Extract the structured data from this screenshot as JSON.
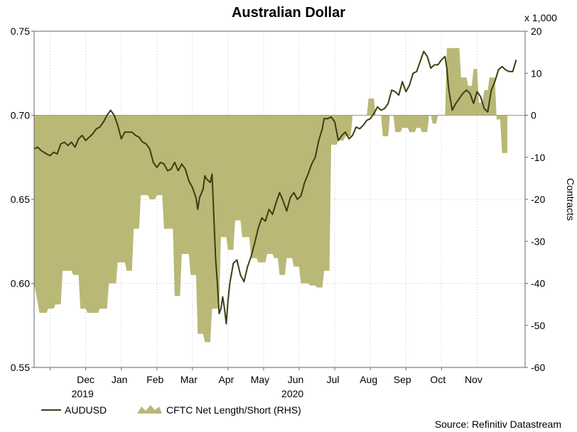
{
  "chart_data": {
    "type": "line+area",
    "title": "Australian Dollar",
    "left_axis": {
      "ylim": [
        0.55,
        0.75
      ],
      "ticks": [
        "0.55",
        "0.60",
        "0.65",
        "0.70",
        "0.75"
      ]
    },
    "right_axis": {
      "ylim": [
        -60,
        20
      ],
      "ticks": [
        "-60",
        "-50",
        "-40",
        "-30",
        "-20",
        "-10",
        "0",
        "10",
        "20"
      ],
      "label": "Contracts",
      "multiplier": "x 1,000"
    },
    "x_month_labels": [
      "Dec",
      "Jan",
      "Feb",
      "Mar",
      "Apr",
      "May",
      "Jun",
      "Jul",
      "Aug",
      "Sep",
      "Oct",
      "Nov"
    ],
    "x_year_labels": [
      {
        "label": "2019",
        "month_index": 0
      },
      {
        "label": "2020",
        "month_index": 6
      }
    ],
    "x_domain_months": [
      0,
      12.25
    ],
    "series": [
      {
        "name": "AUDUSD",
        "axis": "left",
        "color": "#3d3d14",
        "points": [
          [
            0.0,
            0.68
          ],
          [
            0.1,
            0.681
          ],
          [
            0.2,
            0.679
          ],
          [
            0.35,
            0.677
          ],
          [
            0.45,
            0.676
          ],
          [
            0.55,
            0.678
          ],
          [
            0.65,
            0.677
          ],
          [
            0.75,
            0.683
          ],
          [
            0.85,
            0.684
          ],
          [
            0.95,
            0.682
          ],
          [
            1.05,
            0.684
          ],
          [
            1.15,
            0.681
          ],
          [
            1.25,
            0.686
          ],
          [
            1.35,
            0.688
          ],
          [
            1.45,
            0.685
          ],
          [
            1.55,
            0.687
          ],
          [
            1.65,
            0.689
          ],
          [
            1.75,
            0.692
          ],
          [
            1.85,
            0.693
          ],
          [
            1.95,
            0.696
          ],
          [
            2.05,
            0.7
          ],
          [
            2.15,
            0.703
          ],
          [
            2.25,
            0.7
          ],
          [
            2.35,
            0.694
          ],
          [
            2.45,
            0.686
          ],
          [
            2.55,
            0.69
          ],
          [
            2.65,
            0.69
          ],
          [
            2.75,
            0.69
          ],
          [
            2.85,
            0.688
          ],
          [
            2.95,
            0.687
          ],
          [
            3.05,
            0.684
          ],
          [
            3.15,
            0.683
          ],
          [
            3.25,
            0.68
          ],
          [
            3.35,
            0.672
          ],
          [
            3.45,
            0.669
          ],
          [
            3.55,
            0.672
          ],
          [
            3.65,
            0.671
          ],
          [
            3.75,
            0.667
          ],
          [
            3.85,
            0.668
          ],
          [
            3.95,
            0.672
          ],
          [
            4.05,
            0.667
          ],
          [
            4.15,
            0.671
          ],
          [
            4.25,
            0.668
          ],
          [
            4.35,
            0.661
          ],
          [
            4.45,
            0.657
          ],
          [
            4.55,
            0.651
          ],
          [
            4.6,
            0.644
          ],
          [
            4.65,
            0.651
          ],
          [
            4.75,
            0.656
          ],
          [
            4.8,
            0.664
          ],
          [
            4.85,
            0.662
          ],
          [
            4.95,
            0.66
          ],
          [
            5.0,
            0.665
          ],
          [
            5.05,
            0.64
          ],
          [
            5.1,
            0.615
          ],
          [
            5.15,
            0.6
          ],
          [
            5.2,
            0.582
          ],
          [
            5.25,
            0.585
          ],
          [
            5.3,
            0.592
          ],
          [
            5.35,
            0.585
          ],
          [
            5.4,
            0.576
          ],
          [
            5.45,
            0.59
          ],
          [
            5.5,
            0.6
          ],
          [
            5.6,
            0.612
          ],
          [
            5.7,
            0.614
          ],
          [
            5.8,
            0.605
          ],
          [
            5.9,
            0.601
          ],
          [
            6.0,
            0.61
          ],
          [
            6.1,
            0.616
          ],
          [
            6.2,
            0.624
          ],
          [
            6.3,
            0.633
          ],
          [
            6.4,
            0.639
          ],
          [
            6.5,
            0.637
          ],
          [
            6.6,
            0.644
          ],
          [
            6.7,
            0.641
          ],
          [
            6.8,
            0.648
          ],
          [
            6.9,
            0.654
          ],
          [
            7.0,
            0.649
          ],
          [
            7.1,
            0.643
          ],
          [
            7.2,
            0.651
          ],
          [
            7.3,
            0.654
          ],
          [
            7.4,
            0.65
          ],
          [
            7.5,
            0.652
          ],
          [
            7.6,
            0.66
          ],
          [
            7.7,
            0.665
          ],
          [
            7.8,
            0.671
          ],
          [
            7.9,
            0.675
          ],
          [
            8.0,
            0.685
          ],
          [
            8.1,
            0.692
          ],
          [
            8.15,
            0.698
          ],
          [
            8.25,
            0.698
          ],
          [
            8.35,
            0.699
          ],
          [
            8.45,
            0.696
          ],
          [
            8.55,
            0.685
          ],
          [
            8.65,
            0.688
          ],
          [
            8.75,
            0.69
          ],
          [
            8.85,
            0.686
          ],
          [
            8.95,
            0.688
          ],
          [
            9.05,
            0.693
          ],
          [
            9.15,
            0.692
          ],
          [
            9.25,
            0.694
          ],
          [
            9.35,
            0.697
          ],
          [
            9.45,
            0.698
          ],
          [
            9.55,
            0.701
          ],
          [
            9.65,
            0.705
          ],
          [
            9.75,
            0.703
          ],
          [
            9.85,
            0.704
          ],
          [
            9.95,
            0.707
          ],
          [
            10.05,
            0.715
          ],
          [
            10.15,
            0.714
          ],
          [
            10.25,
            0.712
          ],
          [
            10.35,
            0.72
          ],
          [
            10.45,
            0.714
          ],
          [
            10.55,
            0.718
          ],
          [
            10.65,
            0.725
          ],
          [
            10.75,
            0.726
          ],
          [
            10.85,
            0.732
          ],
          [
            10.95,
            0.738
          ],
          [
            11.05,
            0.735
          ],
          [
            11.15,
            0.728
          ],
          [
            11.25,
            0.73
          ],
          [
            11.35,
            0.73
          ],
          [
            11.45,
            0.733
          ],
          [
            11.55,
            0.735
          ],
          [
            11.6,
            0.728
          ],
          [
            11.65,
            0.716
          ],
          [
            11.75,
            0.703
          ],
          [
            11.85,
            0.707
          ],
          [
            11.95,
            0.71
          ],
          [
            12.05,
            0.713
          ],
          [
            12.15,
            0.715
          ],
          [
            12.25,
            0.713
          ],
          [
            12.35,
            0.707
          ],
          [
            12.45,
            0.714
          ],
          [
            12.55,
            0.711
          ],
          [
            12.65,
            0.704
          ],
          [
            12.75,
            0.702
          ],
          [
            12.85,
            0.715
          ],
          [
            12.95,
            0.72
          ],
          [
            13.05,
            0.727
          ],
          [
            13.15,
            0.729
          ],
          [
            13.25,
            0.727
          ],
          [
            13.35,
            0.726
          ],
          [
            13.45,
            0.726
          ],
          [
            13.55,
            0.733
          ]
        ]
      },
      {
        "name": "CFTC Net Length/Short (RHS)",
        "axis": "right",
        "color": "#b9b877",
        "points": [
          [
            0.0,
            -40
          ],
          [
            0.15,
            -47
          ],
          [
            0.35,
            -47
          ],
          [
            0.4,
            -46
          ],
          [
            0.55,
            -46
          ],
          [
            0.6,
            -45
          ],
          [
            0.75,
            -45
          ],
          [
            0.8,
            -37
          ],
          [
            1.05,
            -37
          ],
          [
            1.1,
            -38
          ],
          [
            1.25,
            -38
          ],
          [
            1.3,
            -46
          ],
          [
            1.45,
            -46
          ],
          [
            1.5,
            -47
          ],
          [
            1.8,
            -47
          ],
          [
            1.85,
            -46
          ],
          [
            2.05,
            -46
          ],
          [
            2.1,
            -40
          ],
          [
            2.3,
            -40
          ],
          [
            2.35,
            -35
          ],
          [
            2.55,
            -35
          ],
          [
            2.6,
            -37
          ],
          [
            2.75,
            -37
          ],
          [
            2.8,
            -27
          ],
          [
            2.95,
            -27
          ],
          [
            3.0,
            -19
          ],
          [
            3.2,
            -19
          ],
          [
            3.25,
            -20
          ],
          [
            3.4,
            -20
          ],
          [
            3.45,
            -19
          ],
          [
            3.6,
            -19
          ],
          [
            3.65,
            -27
          ],
          [
            3.9,
            -27
          ],
          [
            3.95,
            -43
          ],
          [
            4.1,
            -43
          ],
          [
            4.15,
            -33
          ],
          [
            4.35,
            -33
          ],
          [
            4.4,
            -38
          ],
          [
            4.55,
            -38
          ],
          [
            4.6,
            -52
          ],
          [
            4.75,
            -52
          ],
          [
            4.8,
            -54
          ],
          [
            4.95,
            -54
          ],
          [
            5.0,
            -46
          ],
          [
            5.2,
            -46
          ],
          [
            5.25,
            -29
          ],
          [
            5.4,
            -29
          ],
          [
            5.45,
            -32
          ],
          [
            5.6,
            -32
          ],
          [
            5.65,
            -25
          ],
          [
            5.8,
            -25
          ],
          [
            5.85,
            -29
          ],
          [
            6.05,
            -29
          ],
          [
            6.1,
            -34
          ],
          [
            6.25,
            -34
          ],
          [
            6.3,
            -35
          ],
          [
            6.5,
            -35
          ],
          [
            6.55,
            -33
          ],
          [
            6.7,
            -33
          ],
          [
            6.75,
            -34
          ],
          [
            6.85,
            -34
          ],
          [
            6.9,
            -38
          ],
          [
            7.05,
            -38
          ],
          [
            7.1,
            -34
          ],
          [
            7.25,
            -34
          ],
          [
            7.3,
            -36
          ],
          [
            7.45,
            -36
          ],
          [
            7.5,
            -40
          ],
          [
            7.7,
            -40
          ],
          [
            7.75,
            -40.5
          ],
          [
            7.9,
            -40.5
          ],
          [
            7.95,
            -41
          ],
          [
            8.1,
            -41
          ],
          [
            8.15,
            -37
          ],
          [
            8.3,
            -37
          ],
          [
            8.35,
            -7
          ],
          [
            8.5,
            -7
          ],
          [
            8.55,
            -6
          ],
          [
            8.7,
            -6
          ],
          [
            8.75,
            -5
          ],
          [
            8.9,
            -5
          ],
          [
            8.95,
            0
          ],
          [
            9.35,
            0
          ],
          [
            9.4,
            4
          ],
          [
            9.55,
            4
          ],
          [
            9.6,
            0
          ],
          [
            9.75,
            0
          ],
          [
            9.8,
            -5
          ],
          [
            9.95,
            -5
          ],
          [
            10.0,
            0
          ],
          [
            10.1,
            0
          ],
          [
            10.15,
            -4
          ],
          [
            10.3,
            -4
          ],
          [
            10.35,
            -3
          ],
          [
            10.5,
            -3
          ],
          [
            10.55,
            -4
          ],
          [
            10.7,
            -4
          ],
          [
            10.75,
            -3
          ],
          [
            10.85,
            -3
          ],
          [
            10.9,
            -4
          ],
          [
            11.05,
            -4
          ],
          [
            11.1,
            0
          ],
          [
            11.15,
            0
          ],
          [
            11.2,
            -2
          ],
          [
            11.3,
            -2
          ],
          [
            11.35,
            0
          ],
          [
            11.55,
            0
          ],
          [
            11.6,
            16
          ],
          [
            11.95,
            16
          ],
          [
            12.0,
            9
          ],
          [
            12.15,
            9
          ],
          [
            12.2,
            7
          ],
          [
            12.3,
            7
          ],
          [
            12.35,
            11
          ],
          [
            12.45,
            11
          ],
          [
            12.5,
            3
          ],
          [
            12.6,
            3
          ],
          [
            12.65,
            6
          ],
          [
            12.75,
            6
          ],
          [
            12.8,
            9
          ],
          [
            12.95,
            9
          ],
          [
            13.0,
            -1
          ],
          [
            13.1,
            -1
          ],
          [
            13.15,
            -9
          ],
          [
            13.3,
            -9
          ]
        ]
      }
    ],
    "legend": {
      "position": "bottom-left",
      "items": [
        {
          "label": "AUDUSD",
          "kind": "line"
        },
        {
          "label": "CFTC Net Length/Short (RHS)",
          "kind": "area"
        }
      ]
    },
    "source": "Source: Refinitiv Datastream"
  }
}
